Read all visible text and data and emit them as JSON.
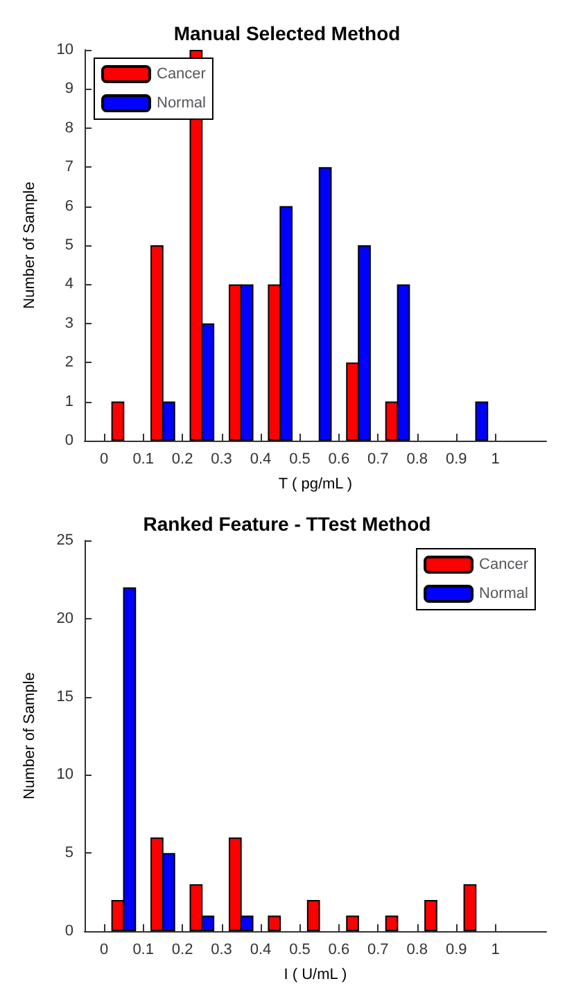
{
  "chart_data": [
    {
      "type": "bar",
      "title": "Manual Selected Method",
      "xlabel": "T ( pg/mL )",
      "ylabel": "Number of Sample",
      "series": [
        {
          "name": "Cancer",
          "color": "#ff0000",
          "x": [
            0.035,
            0.135,
            0.235,
            0.335,
            0.435,
            0.635,
            0.735
          ],
          "values": [
            1,
            5,
            10,
            4,
            4,
            2,
            1
          ]
        },
        {
          "name": "Normal",
          "color": "#0000ff",
          "x": [
            0.165,
            0.265,
            0.365,
            0.465,
            0.565,
            0.665,
            0.765,
            0.965
          ],
          "values": [
            1,
            3,
            4,
            6,
            7,
            5,
            4,
            1
          ]
        }
      ],
      "xlim": [
        -0.05,
        1.13
      ],
      "xticks": [
        0,
        0.1,
        0.2,
        0.3,
        0.4,
        0.5,
        0.6,
        0.7,
        0.8,
        0.9,
        1
      ],
      "ylim": [
        0,
        10
      ],
      "yticks": [
        0,
        1,
        2,
        3,
        4,
        5,
        6,
        7,
        8,
        9,
        10
      ],
      "grid": false,
      "legend": "top left"
    },
    {
      "type": "bar",
      "title": "Ranked Feature - TTest Method",
      "xlabel": "I ( U/mL )",
      "ylabel": "Number of Sample",
      "series": [
        {
          "name": "Cancer",
          "color": "#ff0000",
          "x": [
            0.035,
            0.135,
            0.235,
            0.335,
            0.435,
            0.535,
            0.635,
            0.735,
            0.835,
            0.935
          ],
          "values": [
            2,
            6,
            3,
            6,
            1,
            2,
            1,
            1,
            2,
            3
          ]
        },
        {
          "name": "Normal",
          "color": "#0000ff",
          "x": [
            0.065,
            0.165,
            0.265,
            0.365
          ],
          "values": [
            22,
            5,
            1,
            1
          ]
        }
      ],
      "xlim": [
        -0.05,
        1.13
      ],
      "xticks": [
        0,
        0.1,
        0.2,
        0.3,
        0.4,
        0.5,
        0.6,
        0.7,
        0.8,
        0.9,
        1
      ],
      "ylim": [
        0,
        25
      ],
      "yticks": [
        0,
        5,
        10,
        15,
        20,
        25
      ],
      "grid": false,
      "legend": "top right"
    }
  ]
}
